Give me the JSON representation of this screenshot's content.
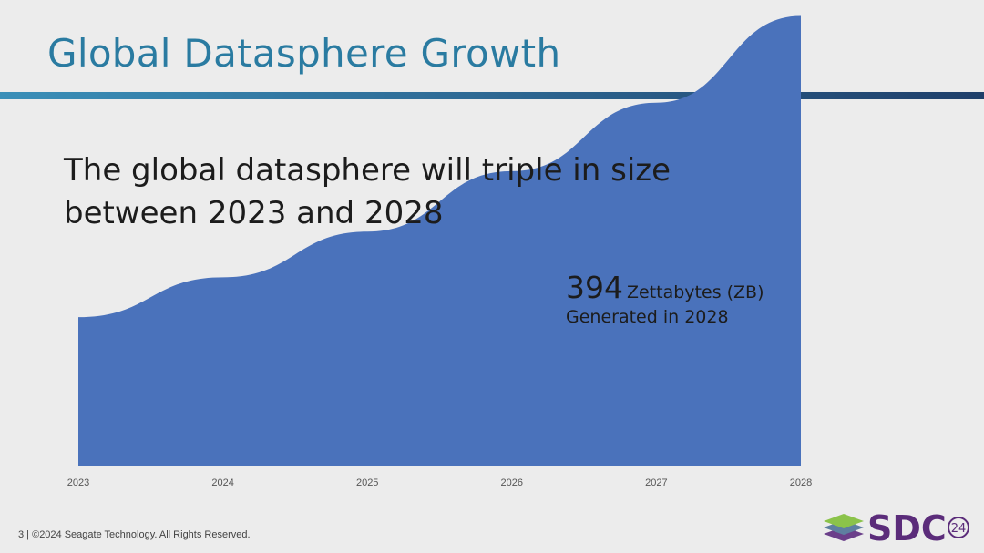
{
  "slide": {
    "title": "Global Datasphere Growth",
    "headline_line1": "The global datasphere will triple in size",
    "headline_line2": "between 2023 and 2028",
    "callout_number": "394",
    "callout_unit": "Zettabytes (ZB)",
    "callout_sub": "Generated in 2028"
  },
  "footer": {
    "text": "3 | ©2024 Seagate Technology. All Rights Reserved."
  },
  "logo": {
    "text": "SDC",
    "badge": "24",
    "colors": {
      "stack_top": "#8bc34a",
      "stack_mid": "#5e7fa0",
      "stack_bottom": "#6b3f8a",
      "letters": "#5b2c7a"
    }
  },
  "colors": {
    "area_fill": "#4a72bb",
    "title": "#2a7ba1"
  },
  "chart_data": {
    "type": "area",
    "categories": [
      "2023",
      "2024",
      "2025",
      "2026",
      "2027",
      "2028"
    ],
    "values": [
      130,
      165,
      205,
      258,
      318,
      394
    ],
    "ylim": [
      0,
      400
    ],
    "grid": false,
    "legend": "none",
    "title": "",
    "xlabel": "",
    "ylabel": ""
  }
}
